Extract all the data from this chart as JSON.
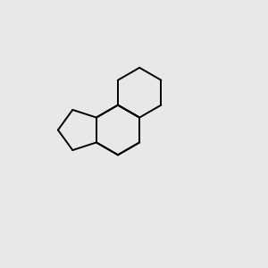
{
  "background_color": "#e8e8e8",
  "bond_color": "#000000",
  "nitrogen_color": "#0000cc",
  "oxygen_color": "#ff0000",
  "sulfur_color": "#bbbb00",
  "chlorine_color": "#00aa00",
  "figsize": [
    3.0,
    3.0
  ],
  "dpi": 100,
  "bond_lw": 1.4,
  "font_size": 7.5
}
